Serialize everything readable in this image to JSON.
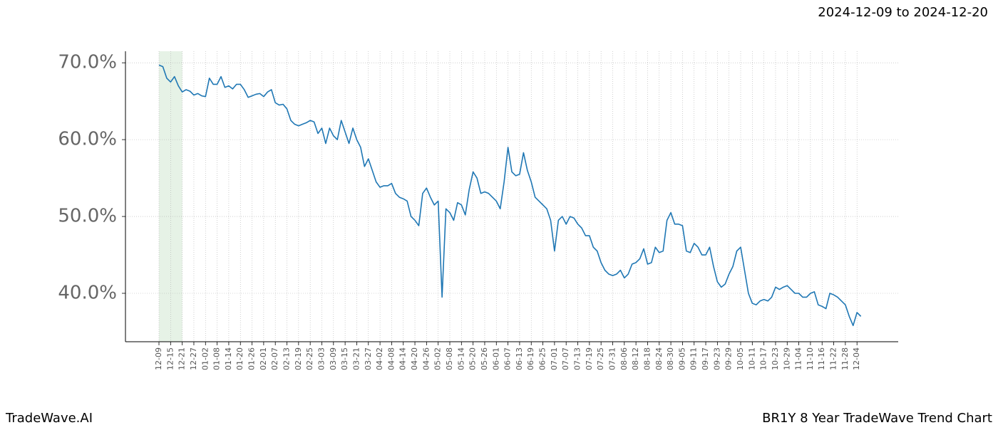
{
  "header": {
    "date_range": "2024-12-09 to 2024-12-20"
  },
  "footer": {
    "brand": "TradeWave.AI",
    "chart_name": "BR1Y 8 Year TradeWave Trend Chart"
  },
  "chart_data": {
    "type": "line",
    "categories": [
      "12-09",
      null,
      null,
      "12-15",
      null,
      null,
      "12-21",
      null,
      null,
      "12-27",
      null,
      null,
      "01-02",
      null,
      null,
      "01-08",
      null,
      null,
      "01-14",
      null,
      null,
      "01-20",
      null,
      null,
      "01-26",
      null,
      null,
      "02-01",
      null,
      null,
      "02-07",
      null,
      null,
      "02-13",
      null,
      null,
      "02-19",
      null,
      null,
      "02-25",
      null,
      null,
      "03-03",
      null,
      null,
      "03-09",
      null,
      null,
      "03-15",
      null,
      null,
      "03-21",
      null,
      null,
      "03-27",
      null,
      null,
      "04-02",
      null,
      null,
      "04-08",
      null,
      null,
      "04-14",
      null,
      null,
      "04-20",
      null,
      null,
      "04-26",
      null,
      null,
      "05-02",
      null,
      null,
      "05-08",
      null,
      null,
      "05-14",
      null,
      null,
      "05-20",
      null,
      null,
      "05-26",
      null,
      null,
      "06-01",
      null,
      null,
      "06-07",
      null,
      null,
      "06-13",
      null,
      null,
      "06-19",
      null,
      null,
      "06-25",
      null,
      null,
      "07-01",
      null,
      null,
      "07-07",
      null,
      null,
      "07-13",
      null,
      null,
      "07-19",
      null,
      null,
      "07-25",
      null,
      null,
      "07-31",
      null,
      null,
      "08-06",
      null,
      null,
      "08-12",
      null,
      null,
      "08-18",
      null,
      null,
      "08-24",
      null,
      null,
      "08-30",
      null,
      null,
      "09-05",
      null,
      null,
      "09-11",
      null,
      null,
      "09-17",
      null,
      null,
      "09-23",
      null,
      null,
      "09-29",
      null,
      null,
      "10-05",
      null,
      null,
      "10-11",
      null,
      null,
      "10-17",
      null,
      null,
      "10-23",
      null,
      null,
      "10-29",
      null,
      null,
      "11-04",
      null,
      null,
      "11-10",
      null,
      null,
      "11-16",
      null,
      null,
      "11-22",
      null,
      null,
      "11-28",
      null,
      null,
      "12-04",
      null
    ],
    "series": [
      {
        "color": "#1f77b4",
        "values": [
          69.7,
          69.5,
          68.0,
          67.5,
          68.2,
          67.0,
          66.2,
          66.5,
          66.3,
          65.8,
          66.0,
          65.7,
          65.6,
          68.0,
          67.2,
          67.2,
          68.2,
          66.8,
          67.0,
          66.6,
          67.2,
          67.2,
          66.5,
          65.5,
          65.7,
          65.9,
          66.0,
          65.6,
          66.2,
          66.5,
          64.8,
          64.5,
          64.6,
          64.0,
          62.5,
          62.0,
          61.8,
          62.0,
          62.2,
          62.5,
          62.3,
          60.8,
          61.5,
          59.5,
          61.5,
          60.5,
          60.0,
          62.5,
          61.0,
          59.5,
          61.5,
          60.0,
          59.0,
          56.5,
          57.5,
          56.0,
          54.5,
          53.8,
          54.0,
          54.0,
          54.3,
          53.0,
          52.5,
          52.3,
          52.0,
          50.0,
          49.5,
          48.8,
          53.0,
          53.7,
          52.5,
          51.5,
          52.0,
          39.5,
          51.0,
          50.5,
          49.5,
          51.8,
          51.5,
          50.2,
          53.5,
          55.8,
          55.0,
          53.0,
          53.2,
          53.0,
          52.5,
          52.0,
          51.0,
          54.5,
          59.0,
          55.8,
          55.3,
          55.5,
          58.3,
          56.0,
          54.5,
          52.5,
          52.0,
          51.5,
          51.0,
          49.5,
          45.5,
          49.5,
          50.0,
          49.0,
          50.0,
          49.8,
          49.0,
          48.5,
          47.5,
          47.5,
          46.0,
          45.5,
          44.0,
          43.0,
          42.5,
          42.3,
          42.5,
          43.0,
          42.0,
          42.5,
          43.8,
          44.0,
          44.5,
          45.8,
          43.8,
          44.0,
          46.0,
          45.3,
          45.5,
          49.5,
          50.5,
          49.0,
          49.0,
          48.8,
          45.5,
          45.3,
          46.5,
          46.0,
          45.0,
          45.0,
          46.0,
          43.5,
          41.5,
          40.8,
          41.2,
          42.5,
          43.5,
          45.5,
          46.0,
          43.0,
          40.0,
          38.7,
          38.5,
          39.0,
          39.2,
          39.0,
          39.5,
          40.8,
          40.5,
          40.8,
          41.0,
          40.5,
          40.0,
          40.0,
          39.5,
          39.5,
          40.0,
          40.2,
          38.5,
          38.3,
          38.0,
          40.0,
          39.8,
          39.5,
          39.0,
          38.5,
          37.0,
          35.8,
          37.5,
          37.0
        ]
      }
    ],
    "ylim": [
      33.7,
      71.5
    ],
    "yticks": [
      {
        "value": 40,
        "label": "40.0%"
      },
      {
        "value": 50,
        "label": "50.0%"
      },
      {
        "value": 60,
        "label": "60.0%"
      },
      {
        "value": 70,
        "label": "70.0%"
      }
    ],
    "grid": true,
    "highlight": {
      "start": "12-09",
      "end": "12-21",
      "color": "#e6f2e6"
    }
  }
}
